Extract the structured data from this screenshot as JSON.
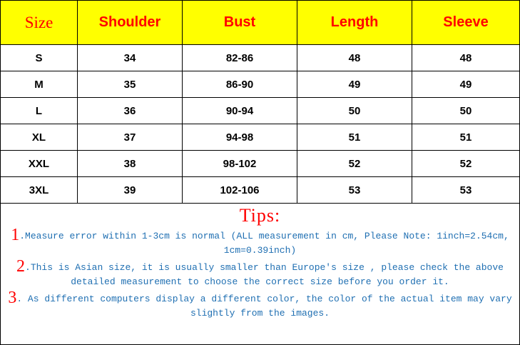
{
  "table": {
    "headers": [
      "Size",
      "Shoulder",
      "Bust",
      "Length",
      "Sleeve"
    ],
    "rows": [
      [
        "S",
        "34",
        "82-86",
        "48",
        "48"
      ],
      [
        "M",
        "35",
        "86-90",
        "49",
        "49"
      ],
      [
        "L",
        "36",
        "90-94",
        "50",
        "50"
      ],
      [
        "XL",
        "37",
        "94-98",
        "51",
        "51"
      ],
      [
        "XXL",
        "38",
        "98-102",
        "52",
        "52"
      ],
      [
        "3XL",
        "39",
        "102-106",
        "53",
        "53"
      ]
    ]
  },
  "tips": {
    "title": "Tips:",
    "items": [
      {
        "num": "1",
        "text": ".Measure error within 1-3cm is normal (ALL measurement in cm, Please Note: 1inch=2.54cm, 1cm=0.39inch)"
      },
      {
        "num": "2",
        "text": ".This is Asian size, it is usually smaller than Europe's size , please check the above detailed measurement to choose the correct size before you order it."
      },
      {
        "num": "3",
        "text": ". As different computers display a different color, the color of the actual item may vary slightly from the images."
      }
    ]
  },
  "colors": {
    "header_bg": "#ffff00",
    "header_text": "#ff0000",
    "tip_text": "#1f6fb2"
  }
}
